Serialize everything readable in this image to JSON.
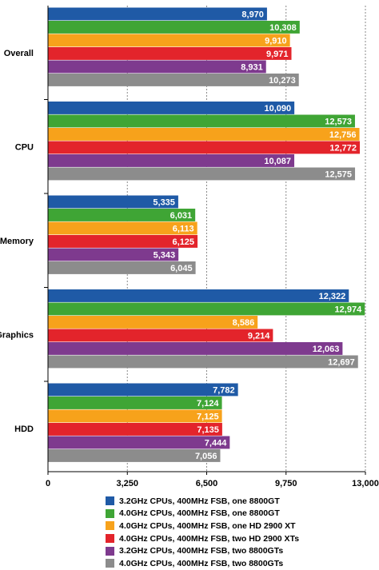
{
  "chart_data": {
    "type": "bar",
    "orientation": "horizontal",
    "title": "",
    "xlabel": "",
    "ylabel": "",
    "categories": [
      "Overall",
      "CPU",
      "Memory",
      "Graphics",
      "HDD"
    ],
    "xlim": [
      0,
      13000
    ],
    "ticks": [
      0,
      3250,
      6500,
      9750,
      13000
    ],
    "tick_labels": [
      "0",
      "3,250",
      "6,500",
      "9,750",
      "13,000"
    ],
    "grid": true,
    "legend_position": "bottom",
    "series": [
      {
        "name": "3.2GHz CPUs, 400MHz FSB, one 8800GT",
        "color": "#1f5aa6",
        "values": [
          8970,
          10090,
          5335,
          12322,
          7782
        ],
        "labels": [
          "8,970",
          "10,090",
          "5,335",
          "12,322",
          "7,782"
        ]
      },
      {
        "name": "4.0GHz CPUs, 400MHz FSB, one 8800GT",
        "color": "#3fa535",
        "values": [
          10308,
          12573,
          6031,
          12974,
          7124
        ],
        "labels": [
          "10,308",
          "12,573",
          "6,031",
          "12,974",
          "7,124"
        ]
      },
      {
        "name": "4.0GHz CPUs, 400MHz FSB, one HD 2900 XT",
        "color": "#f7a21b",
        "values": [
          9910,
          12756,
          6113,
          8586,
          7125
        ],
        "labels": [
          "9,910",
          "12,756",
          "6,113",
          "8,586",
          "7,125"
        ]
      },
      {
        "name": "4.0GHz CPUs, 400MHz FSB, two HD 2900 XTs",
        "color": "#e3242b",
        "values": [
          9971,
          12772,
          6125,
          9214,
          7135
        ],
        "labels": [
          "9,971",
          "12,772",
          "6,125",
          "9,214",
          "7,135"
        ]
      },
      {
        "name": "3.2GHz CPUs, 400MHz FSB, two 8800GTs",
        "color": "#7e3a8e",
        "values": [
          8931,
          10087,
          5343,
          12063,
          7444
        ],
        "labels": [
          "8,931",
          "10,087",
          "5,343",
          "12,063",
          "7,444"
        ]
      },
      {
        "name": "4.0GHz CPUs, 400MHz FSB, two 8800GTs",
        "color": "#8c8c8c",
        "values": [
          10273,
          12575,
          6045,
          12697,
          7056
        ],
        "labels": [
          "10,273",
          "12,575",
          "6,045",
          "12,697",
          "7,056"
        ]
      }
    ]
  }
}
